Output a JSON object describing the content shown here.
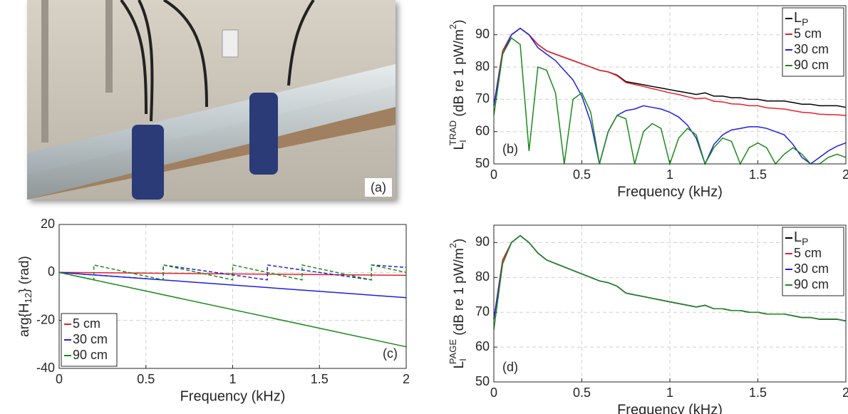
{
  "chart_data": [
    {
      "type": "image",
      "panel_label": "(a)"
    },
    {
      "type": "line",
      "panel_label": "(b)",
      "xlabel": "Frequency (kHz)",
      "ylabel": [
        {
          "text": "L"
        },
        {
          "text": "I",
          "shift": "sub"
        },
        {
          "text": "TRAD",
          "shift": "sup"
        },
        {
          "text": " (dB re 1 pW/m"
        },
        {
          "text": "2",
          "shift": "sup"
        },
        {
          "text": ")"
        }
      ],
      "xlim": [
        0,
        2
      ],
      "xticks": [
        0,
        0.5,
        1,
        1.5,
        2
      ],
      "ylim": [
        50,
        99
      ],
      "yticks": [
        50,
        60,
        70,
        80,
        90
      ],
      "grid": true,
      "legend_loc": "upper right",
      "x": [
        0,
        0.05,
        0.1,
        0.15,
        0.2,
        0.25,
        0.3,
        0.35,
        0.4,
        0.45,
        0.5,
        0.55,
        0.6,
        0.65,
        0.7,
        0.75,
        0.8,
        0.85,
        0.9,
        0.95,
        1,
        1.05,
        1.1,
        1.15,
        1.2,
        1.25,
        1.3,
        1.35,
        1.4,
        1.45,
        1.5,
        1.55,
        1.6,
        1.65,
        1.7,
        1.75,
        1.8,
        1.85,
        1.9,
        1.95,
        2
      ],
      "series": [
        {
          "name": "L",
          "name_sub": "P",
          "color": "#000000",
          "values": [
            68,
            85,
            90,
            92,
            90,
            87,
            85,
            84,
            83,
            82,
            81,
            80,
            79,
            78.5,
            77.5,
            75.5,
            75,
            74.5,
            74,
            73.5,
            73,
            72.5,
            72,
            71.5,
            72,
            71,
            71,
            70.5,
            70.5,
            70,
            70,
            69.5,
            69.5,
            69.5,
            69,
            68.5,
            68.5,
            68,
            68,
            68,
            67.5
          ]
        },
        {
          "name": "5 cm",
          "color": "#e8202a",
          "values": [
            68,
            85,
            90,
            92,
            90,
            87,
            85,
            84,
            83,
            82,
            81,
            80,
            79,
            78.5,
            77.3,
            75.2,
            74.6,
            74,
            73.3,
            72.7,
            72,
            71.5,
            70.8,
            70.2,
            70.4,
            69.4,
            69.2,
            68.6,
            68.5,
            68,
            68,
            67.4,
            67.2,
            67,
            66.5,
            66,
            65.8,
            65.4,
            65.3,
            65.2,
            65
          ]
        },
        {
          "name": "30 cm",
          "color": "#1f1fe0",
          "values": [
            68,
            84,
            90,
            92,
            90,
            86,
            84,
            82,
            79,
            76,
            71,
            63,
            50,
            60,
            65,
            66.5,
            67,
            68,
            67.5,
            67,
            66,
            64.5,
            62,
            58,
            50,
            56,
            59,
            60.5,
            61,
            61.5,
            61.5,
            61,
            60,
            59,
            56,
            52,
            50,
            52,
            54,
            55.5,
            56.5
          ]
        },
        {
          "name": "90 cm",
          "color": "#1a8a1a",
          "values": [
            65,
            84,
            89,
            87,
            54,
            80,
            79,
            72,
            50,
            70,
            72,
            66,
            50,
            60,
            65,
            64,
            50,
            60,
            62.5,
            61,
            50,
            58,
            61,
            59,
            50,
            55,
            58,
            57,
            50,
            55,
            56.5,
            55,
            50,
            53,
            55,
            53,
            50,
            50,
            52,
            53,
            52
          ]
        }
      ]
    },
    {
      "type": "line",
      "panel_label": "(c)",
      "xlabel": "Frequency (kHz)",
      "ylabel": [
        {
          "text": "arg{H"
        },
        {
          "text": "12",
          "shift": "sub"
        },
        {
          "text": "} (rad)"
        }
      ],
      "xlim": [
        0,
        2
      ],
      "xticks": [
        0,
        0.5,
        1,
        1.5,
        2
      ],
      "ylim": [
        -40,
        20
      ],
      "yticks": [
        -40,
        -20,
        0,
        20
      ],
      "grid": true,
      "legend_loc": "lower left",
      "series": [
        {
          "name": "5 cm",
          "color": "#e8202a",
          "x": [
            0,
            2
          ],
          "values": [
            0,
            -1.2
          ]
        },
        {
          "name": "30 cm",
          "color": "#1f1fe0",
          "x": [
            0,
            2
          ],
          "values": [
            0,
            -10.5
          ]
        },
        {
          "name": "90 cm",
          "color": "#1a8a1a",
          "x": [
            0,
            2
          ],
          "values": [
            0,
            -31
          ]
        },
        {
          "color": "#1f1fe0",
          "dash": true,
          "x": [
            0,
            0.6,
            0.6,
            1.2,
            1.2,
            1.8,
            1.8,
            2
          ],
          "values": [
            0,
            -3.1,
            3.1,
            -3.1,
            3.1,
            -3.1,
            3.1,
            2.1
          ]
        },
        {
          "color": "#1a8a1a",
          "dash": true,
          "x": [
            0,
            0.2,
            0.2,
            0.6,
            0.6,
            1,
            1,
            1.4,
            1.4,
            1.8,
            1.8,
            2
          ],
          "values": [
            0,
            -3.1,
            3.1,
            -3.1,
            3.1,
            -3.1,
            3.1,
            -3.1,
            3.1,
            -3.1,
            3.1,
            0
          ]
        }
      ]
    },
    {
      "type": "line",
      "panel_label": "(d)",
      "xlabel": "Frequency (kHz)",
      "ylabel": [
        {
          "text": "L"
        },
        {
          "text": "I",
          "shift": "sub"
        },
        {
          "text": "PAGE",
          "shift": "sup"
        },
        {
          "text": " (dB re 1 pW/m"
        },
        {
          "text": "2",
          "shift": "sup"
        },
        {
          "text": ")"
        }
      ],
      "xlim": [
        0,
        2
      ],
      "xticks": [
        0,
        0.5,
        1,
        1.5,
        2
      ],
      "ylim": [
        50,
        95
      ],
      "yticks": [
        50,
        60,
        70,
        80,
        90
      ],
      "grid": true,
      "legend_loc": "upper right",
      "x": [
        0,
        0.05,
        0.1,
        0.15,
        0.2,
        0.25,
        0.3,
        0.35,
        0.4,
        0.45,
        0.5,
        0.55,
        0.6,
        0.65,
        0.7,
        0.75,
        0.8,
        0.85,
        0.9,
        0.95,
        1,
        1.05,
        1.1,
        1.15,
        1.2,
        1.25,
        1.3,
        1.35,
        1.4,
        1.45,
        1.5,
        1.55,
        1.6,
        1.65,
        1.7,
        1.75,
        1.8,
        1.85,
        1.9,
        1.95,
        2
      ],
      "series": [
        {
          "name": "L",
          "name_sub": "P",
          "color": "#000000",
          "values": [
            68,
            85,
            90,
            92,
            90,
            87,
            85,
            84,
            83,
            82,
            81,
            80,
            79,
            78.5,
            77.5,
            75.5,
            75,
            74.5,
            74,
            73.5,
            73,
            72.5,
            72,
            71.5,
            72,
            71,
            71,
            70.5,
            70.5,
            70,
            70,
            69.5,
            69.5,
            69.5,
            69,
            68.5,
            68.5,
            68,
            68,
            68,
            67.5
          ]
        },
        {
          "name": "5 cm",
          "color": "#e8202a",
          "values": [
            68,
            85,
            90,
            92,
            90,
            87,
            85,
            84,
            83,
            82,
            81,
            80,
            79,
            78.5,
            77.5,
            75.5,
            75,
            74.5,
            74,
            73.5,
            73,
            72.5,
            72,
            71.5,
            72,
            71,
            71,
            70.5,
            70.5,
            70,
            70,
            69.5,
            69.5,
            69.5,
            69,
            68.5,
            68.5,
            68,
            68,
            68,
            67.5
          ]
        },
        {
          "name": "30 cm",
          "color": "#1f1fe0",
          "values": [
            68,
            84,
            90,
            92,
            90,
            87,
            85,
            84,
            83,
            82,
            81,
            80,
            79,
            78.5,
            77.5,
            75.5,
            75,
            74.5,
            74,
            73.5,
            73,
            72.5,
            72,
            71.5,
            72,
            71,
            71,
            70.5,
            70.5,
            70,
            70,
            69.5,
            69.5,
            69.5,
            69,
            68.5,
            68.5,
            68,
            68,
            68,
            67.5
          ]
        },
        {
          "name": "90 cm",
          "color": "#1a8a1a",
          "values": [
            65,
            84,
            90,
            92,
            90,
            87,
            85,
            84,
            83,
            82,
            81,
            80,
            79,
            78.5,
            77.5,
            75.5,
            75,
            74.5,
            74,
            73.5,
            73,
            72.5,
            72,
            71.5,
            72,
            71,
            71,
            70.5,
            70.5,
            70,
            70,
            69.5,
            69.5,
            69.5,
            69,
            68.5,
            68.5,
            68,
            68,
            68,
            67.5
          ]
        }
      ]
    }
  ]
}
